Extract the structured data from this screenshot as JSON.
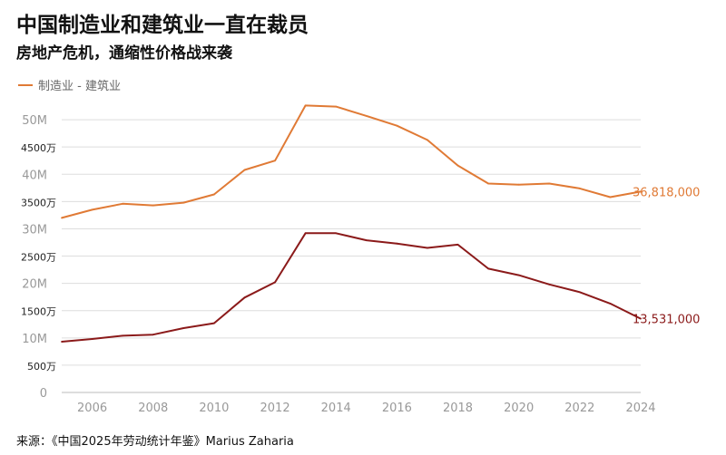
{
  "title": "中国制造业和建筑业一直在裁员",
  "subtitle": "房地产危机，通缩性价格战来袭",
  "source": "来源：《中国2025年劳动统计年鉴》Marius Zaharia",
  "chart_data": {
    "type": "line",
    "title": "中国制造业和建筑业一直在裁员",
    "subtitle": "房地产危机，通缩性价格战来袭",
    "legend": "制造业 - 建筑业",
    "x": [
      2005,
      2006,
      2007,
      2008,
      2009,
      2010,
      2011,
      2012,
      2013,
      2014,
      2015,
      2016,
      2017,
      2018,
      2019,
      2020,
      2021,
      2022,
      2023,
      2024
    ],
    "x_ticks": [
      "2006",
      "2008",
      "2010",
      "2012",
      "2014",
      "2016",
      "2018",
      "2020",
      "2022",
      "2024"
    ],
    "y_ticks": [
      {
        "value": 0,
        "label": "0"
      },
      {
        "value": 5000000,
        "label": "500万"
      },
      {
        "value": 10000000,
        "label": "10M"
      },
      {
        "value": 15000000,
        "label": "1500万"
      },
      {
        "value": 20000000,
        "label": "20M"
      },
      {
        "value": 25000000,
        "label": "2500万"
      },
      {
        "value": 30000000,
        "label": "30M"
      },
      {
        "value": 35000000,
        "label": "3500万"
      },
      {
        "value": 40000000,
        "label": "40M"
      },
      {
        "value": 45000000,
        "label": "4500万"
      },
      {
        "value": 50000000,
        "label": "50M"
      }
    ],
    "ylim": [
      0,
      55000000
    ],
    "grid": true,
    "series": [
      {
        "color": "#e07a35",
        "end_label": "36,818,000",
        "values": [
          32000000,
          33500000,
          34600000,
          34300000,
          34800000,
          36300000,
          40800000,
          42500000,
          52600000,
          52400000,
          50700000,
          48900000,
          46300000,
          41600000,
          38300000,
          38100000,
          38300000,
          37400000,
          35800000,
          36818000
        ]
      },
      {
        "color": "#8b1a1a",
        "end_label": "13,531,000",
        "values": [
          9300000,
          9800000,
          10400000,
          10600000,
          11800000,
          12700000,
          17400000,
          20200000,
          29200000,
          29200000,
          27900000,
          27300000,
          26500000,
          27100000,
          22700000,
          21500000,
          19800000,
          18400000,
          16300000,
          13531000
        ]
      }
    ]
  }
}
